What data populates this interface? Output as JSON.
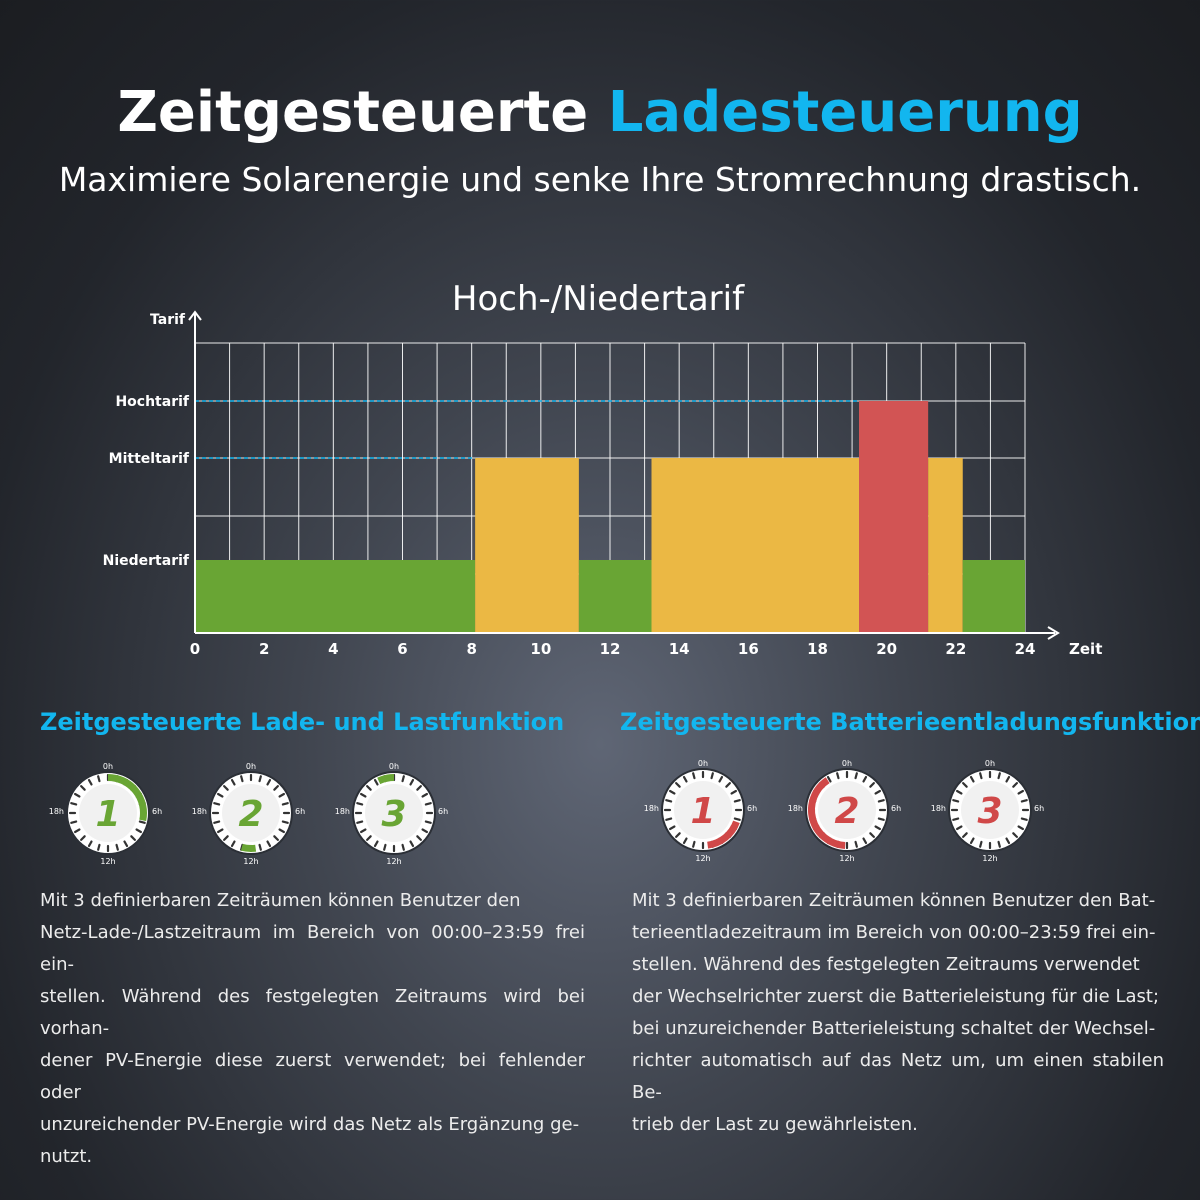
{
  "header": {
    "title_part1": "Zeitgesteuerte",
    "title_part2": "Ladesteuerung",
    "subtitle": "Maximiere Solarenergie und senke Ihre Stromrechnung drastisch.",
    "accent_color": "#12b6ef"
  },
  "chart_data": {
    "type": "bar",
    "title": "Hoch-/Niedertarif",
    "ylabel": "Tarif",
    "xlabel": "Zeit",
    "x_ticks": [
      "0",
      "2",
      "4",
      "6",
      "8",
      "10",
      "12",
      "14",
      "16",
      "18",
      "20",
      "22",
      "24"
    ],
    "xlim": [
      0,
      24
    ],
    "y_levels": [
      "Niedertarif",
      "Mitteltarif",
      "Hochtarif"
    ],
    "grid": true,
    "colors": {
      "Niedertarif": "#69a534",
      "Mitteltarif": "#ebb844",
      "Hochtarif": "#d25454"
    },
    "segments": [
      {
        "start": 0,
        "end": 8.1,
        "level": "Niedertarif"
      },
      {
        "start": 8.1,
        "end": 11.1,
        "level": "Mitteltarif"
      },
      {
        "start": 11.1,
        "end": 13.2,
        "level": "Niedertarif"
      },
      {
        "start": 13.2,
        "end": 19.2,
        "level": "Mitteltarif"
      },
      {
        "start": 19.2,
        "end": 21.2,
        "level": "Hochtarif"
      },
      {
        "start": 21.2,
        "end": 22.2,
        "level": "Mitteltarif"
      },
      {
        "start": 22.2,
        "end": 24,
        "level": "Niedertarif"
      }
    ]
  },
  "left_section": {
    "title": "Zeitgesteuerte Lade- und Lastfunktion",
    "color": "#69a534",
    "clocks": [
      {
        "number": "1",
        "arc_start_hour": 0,
        "arc_end_hour": 6.8
      },
      {
        "number": "2",
        "arc_start_hour": 11.5,
        "arc_end_hour": 13
      },
      {
        "number": "3",
        "arc_start_hour": 22.3,
        "arc_end_hour": 24
      }
    ],
    "clock_labels": {
      "top": "0h",
      "right": "6h",
      "bottom": "12h",
      "left": "18h"
    },
    "text_lines": [
      "Mit 3 definierbaren Zeiträumen können Benutzer den",
      "Netz-Lade-/Lastzeitraum im Bereich von 00:00–23:59 frei ein-",
      "stellen. Während des festgelegten Zeitraums wird bei vorhan-",
      "dener PV-Energie diese zuerst verwendet; bei fehlender oder",
      "unzureichender PV-Energie wird das Netz als Ergänzung ge-",
      "nutzt."
    ]
  },
  "right_section": {
    "title": "Zeitgesteuerte Batterieentladungsfunktion",
    "color": "#d04848",
    "clocks": [
      {
        "number": "1",
        "arc_start_hour": 7.3,
        "arc_end_hour": 11.5
      },
      {
        "number": "2",
        "arc_start_hour": 12.2,
        "arc_end_hour": 21.8
      },
      {
        "number": "3",
        "arc_start_hour": 0,
        "arc_end_hour": 0
      }
    ],
    "clock_labels": {
      "top": "0h",
      "right": "6h",
      "bottom": "12h",
      "left": "18h"
    },
    "text_lines": [
      "Mit 3 definierbaren Zeiträumen können Benutzer den Bat-",
      "terieentladezeitraum im Bereich von 00:00–23:59 frei ein-",
      "stellen. Während des festgelegten Zeitraums verwendet",
      "der Wechselrichter zuerst die Batterieleistung für die Last;",
      "bei unzureichender Batterieleistung schaltet der Wechsel-",
      "richter automatisch auf das Netz um, um einen stabilen Be-",
      "trieb der Last zu gewährleisten."
    ]
  }
}
